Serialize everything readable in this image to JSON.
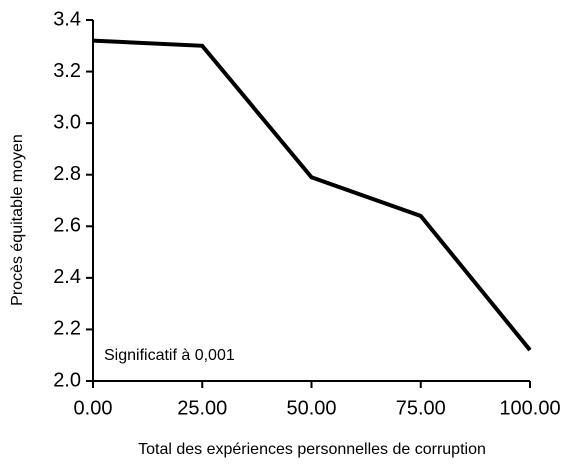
{
  "chart_data": {
    "type": "line",
    "x": [
      0,
      25,
      50,
      75,
      100
    ],
    "values": [
      3.32,
      3.3,
      2.79,
      2.64,
      2.12
    ],
    "color": "#000000",
    "xlabel": "Total des expériences personnelles de corruption",
    "ylabel": "Procès équitable moyen",
    "annotation": "Significatif à 0,001",
    "xlim": [
      0,
      100
    ],
    "xticks": [
      {
        "value": 0,
        "label": "0.00"
      },
      {
        "value": 25,
        "label": "25.00"
      },
      {
        "value": 50,
        "label": "50.00"
      },
      {
        "value": 75,
        "label": "75.00"
      },
      {
        "value": 100,
        "label": "100.00"
      }
    ],
    "ylim": [
      2.0,
      3.4
    ],
    "yticks": [
      {
        "value": 2.0,
        "label": "2.0"
      },
      2.2,
      2.4,
      2.6,
      2.8,
      {
        "value": 3.0,
        "label": "3.0"
      },
      3.2,
      3.4
    ],
    "grid": false
  }
}
